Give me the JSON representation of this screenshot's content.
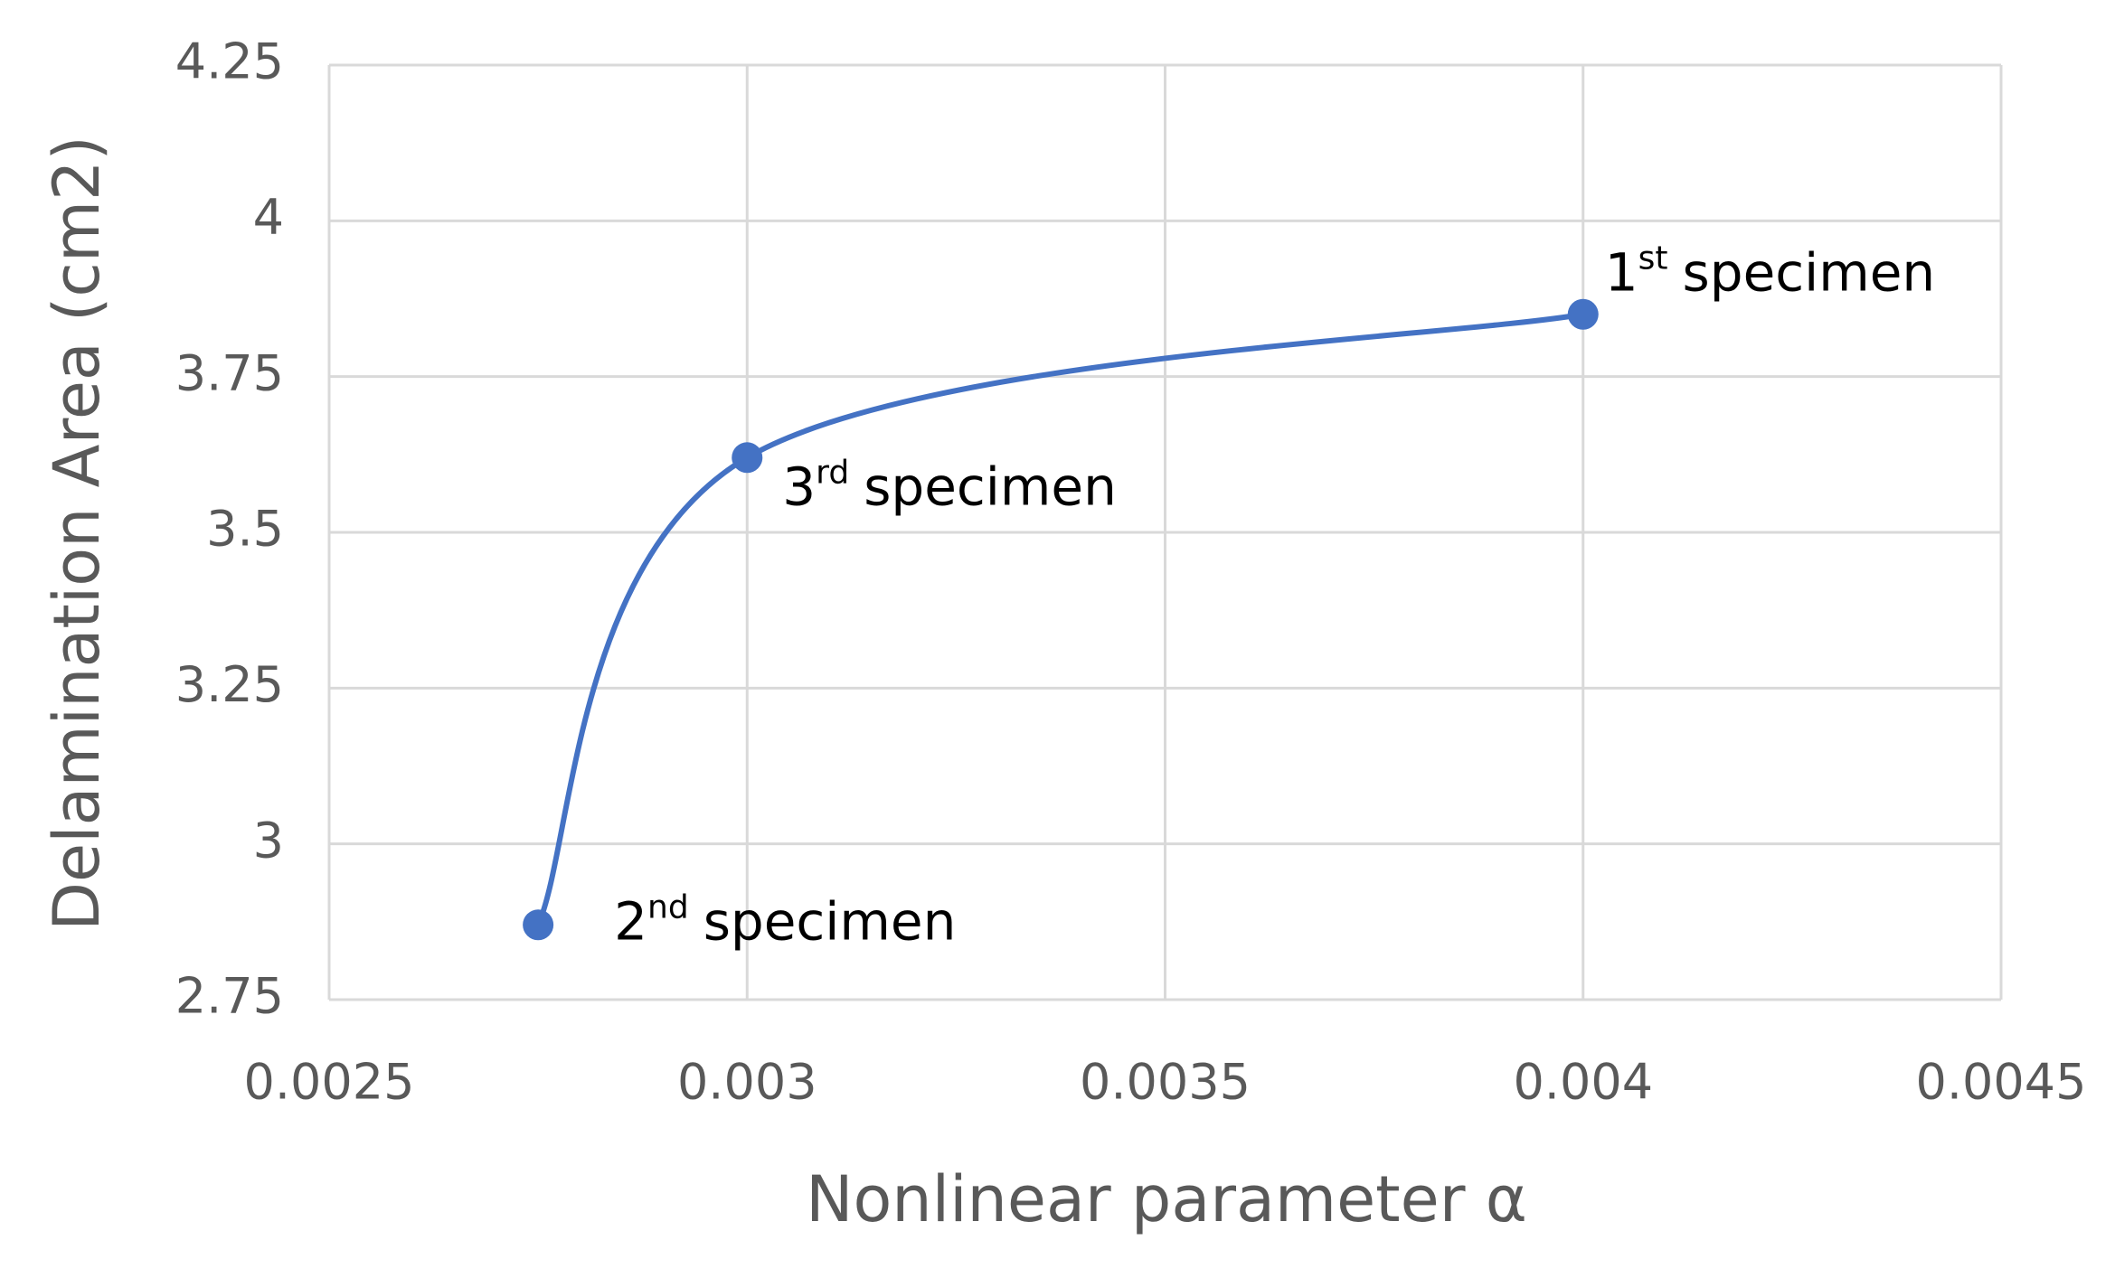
{
  "chart_data": {
    "type": "line",
    "x_label": "Nonlinear parameter α",
    "y_label": "Delamination Area (cm2)",
    "xlim": [
      0.0025,
      0.0045
    ],
    "xticks": [
      0.0025,
      0.003,
      0.0035,
      0.004,
      0.0045
    ],
    "ylim": [
      2.75,
      4.25
    ],
    "yticks": [
      2.75,
      3,
      3.25,
      3.5,
      3.75,
      4,
      4.25
    ],
    "grid": true,
    "smooth": true,
    "series": [
      {
        "color": "#4472c4",
        "x": [
          0.00275,
          0.003,
          0.004
        ],
        "values": [
          2.87,
          3.62,
          3.85
        ],
        "labels": [
          {
            "num": "2",
            "sup": "nd",
            "text": "specimen"
          },
          {
            "num": "3",
            "sup": "rd",
            "text": "specimen"
          },
          {
            "num": "1",
            "sup": "st",
            "text": "specimen"
          }
        ]
      }
    ]
  }
}
